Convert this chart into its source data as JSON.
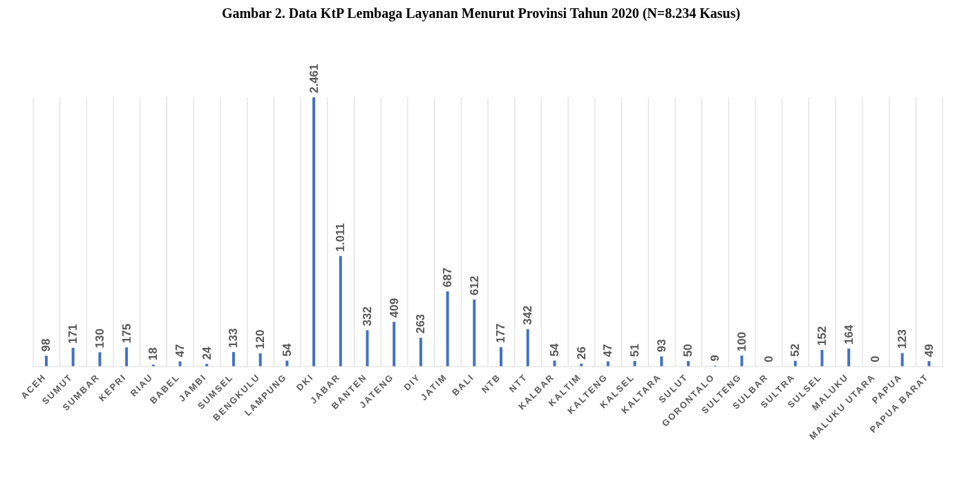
{
  "chart_data": {
    "type": "bar",
    "title": "Gambar 2. Data KtP Lembaga Layanan Menurut Provinsi Tahun 2020 (N=8.234 Kasus)",
    "categories": [
      "ACEH",
      "SUMUT",
      "SUMBAR",
      "KEPRI",
      "RIAU",
      "BABEL",
      "JAMBI",
      "SUMSEL",
      "BENGKULU",
      "LAMPUNG",
      "DKI",
      "JABAR",
      "BANTEN",
      "JATENG",
      "DIY",
      "JATIM",
      "BALI",
      "NTB",
      "NTT",
      "KALBAR",
      "KALTIM",
      "KALTENG",
      "KALSEL",
      "KALTARA",
      "SULUT",
      "GORONTALO",
      "SULTENG",
      "SULBAR",
      "SULTRA",
      "SULSEL",
      "MALUKU",
      "MALUKU UTARA",
      "PAPUA",
      "PAPUA BARAT"
    ],
    "values": [
      98,
      171,
      130,
      175,
      18,
      47,
      24,
      133,
      120,
      54,
      2461,
      1011,
      332,
      409,
      263,
      687,
      612,
      177,
      342,
      54,
      26,
      47,
      51,
      93,
      50,
      9,
      100,
      0,
      52,
      152,
      164,
      0,
      123,
      49
    ],
    "value_labels": [
      "98",
      "171",
      "130",
      "175",
      "18",
      "47",
      "24",
      "133",
      "120",
      "54",
      "2.461",
      "1.011",
      "332",
      "409",
      "263",
      "687",
      "612",
      "177",
      "342",
      "54",
      "26",
      "47",
      "51",
      "93",
      "50",
      "9",
      "100",
      "0",
      "52",
      "152",
      "164",
      "0",
      "123",
      "49"
    ],
    "color": "#4472c4",
    "grid": "x"
  }
}
